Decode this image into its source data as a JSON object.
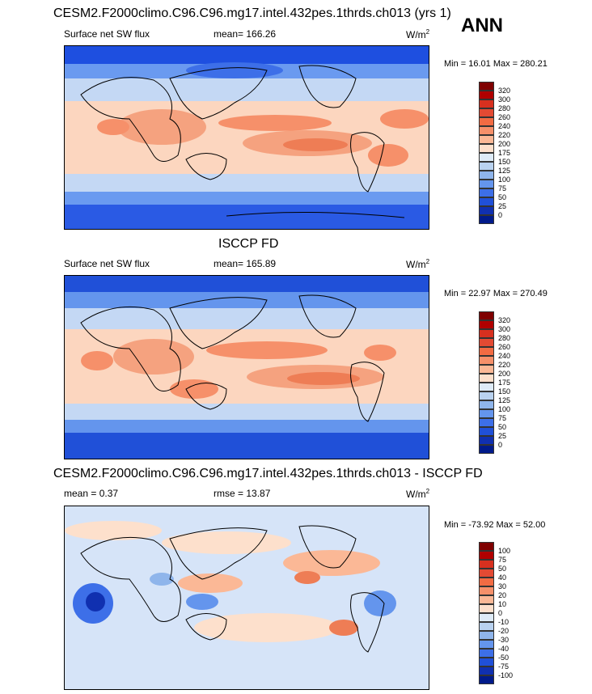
{
  "season": "ANN",
  "panels": [
    {
      "title": "CESM2.F2000climo.C96.C96.mg17.intel.432pes.1thrds.ch013 (yrs 1)",
      "left_label": "Surface net SW flux",
      "center_label": "mean= 166.26",
      "units": "W/m",
      "units_sup": "2",
      "minmax": "Min =  16.01 Max = 280.21",
      "colorbar": {
        "labels": [
          "320",
          "300",
          "280",
          "260",
          "240",
          "220",
          "200",
          "175",
          "150",
          "125",
          "100",
          "75",
          "50",
          "25",
          "0"
        ],
        "colors": [
          "#7f0000",
          "#b00000",
          "#d7301f",
          "#e34a33",
          "#f26b43",
          "#f6906a",
          "#fbb896",
          "#fde0cc",
          "#deebf7",
          "#b9d2f0",
          "#8fb5eb",
          "#6495ed",
          "#3d6fe8",
          "#2050d8",
          "#1030b0",
          "#001a8a"
        ]
      }
    },
    {
      "title": "ISCCP FD",
      "left_label": "Surface net SW flux",
      "center_label": "mean= 165.89",
      "units": "W/m",
      "units_sup": "2",
      "minmax": "Min =  22.97 Max = 270.49",
      "colorbar": {
        "labels": [
          "320",
          "300",
          "280",
          "260",
          "240",
          "220",
          "200",
          "175",
          "150",
          "125",
          "100",
          "75",
          "50",
          "25",
          "0"
        ],
        "colors": [
          "#7f0000",
          "#b00000",
          "#d7301f",
          "#e34a33",
          "#f26b43",
          "#f6906a",
          "#fbb896",
          "#fde0cc",
          "#deebf7",
          "#b9d2f0",
          "#8fb5eb",
          "#6495ed",
          "#3d6fe8",
          "#2050d8",
          "#1030b0",
          "#001a8a"
        ]
      }
    },
    {
      "title": "CESM2.F2000climo.C96.C96.mg17.intel.432pes.1thrds.ch013 - ISCCP FD",
      "left_label": "mean =   0.37",
      "center_label": "rmse =  13.87",
      "units": "W/m",
      "units_sup": "2",
      "minmax": "Min = -73.92 Max =  52.00",
      "colorbar": {
        "labels": [
          "100",
          "75",
          "50",
          "40",
          "30",
          "20",
          "10",
          "0",
          "-10",
          "-20",
          "-30",
          "-40",
          "-50",
          "-75",
          "-100"
        ],
        "colors": [
          "#7f0000",
          "#b00000",
          "#d7301f",
          "#e34a33",
          "#f26b43",
          "#f6906a",
          "#fbb896",
          "#fde0cc",
          "#deebf7",
          "#b9d2f0",
          "#8fb5eb",
          "#6495ed",
          "#3d6fe8",
          "#2050d8",
          "#1030b0",
          "#001a8a"
        ]
      }
    }
  ]
}
